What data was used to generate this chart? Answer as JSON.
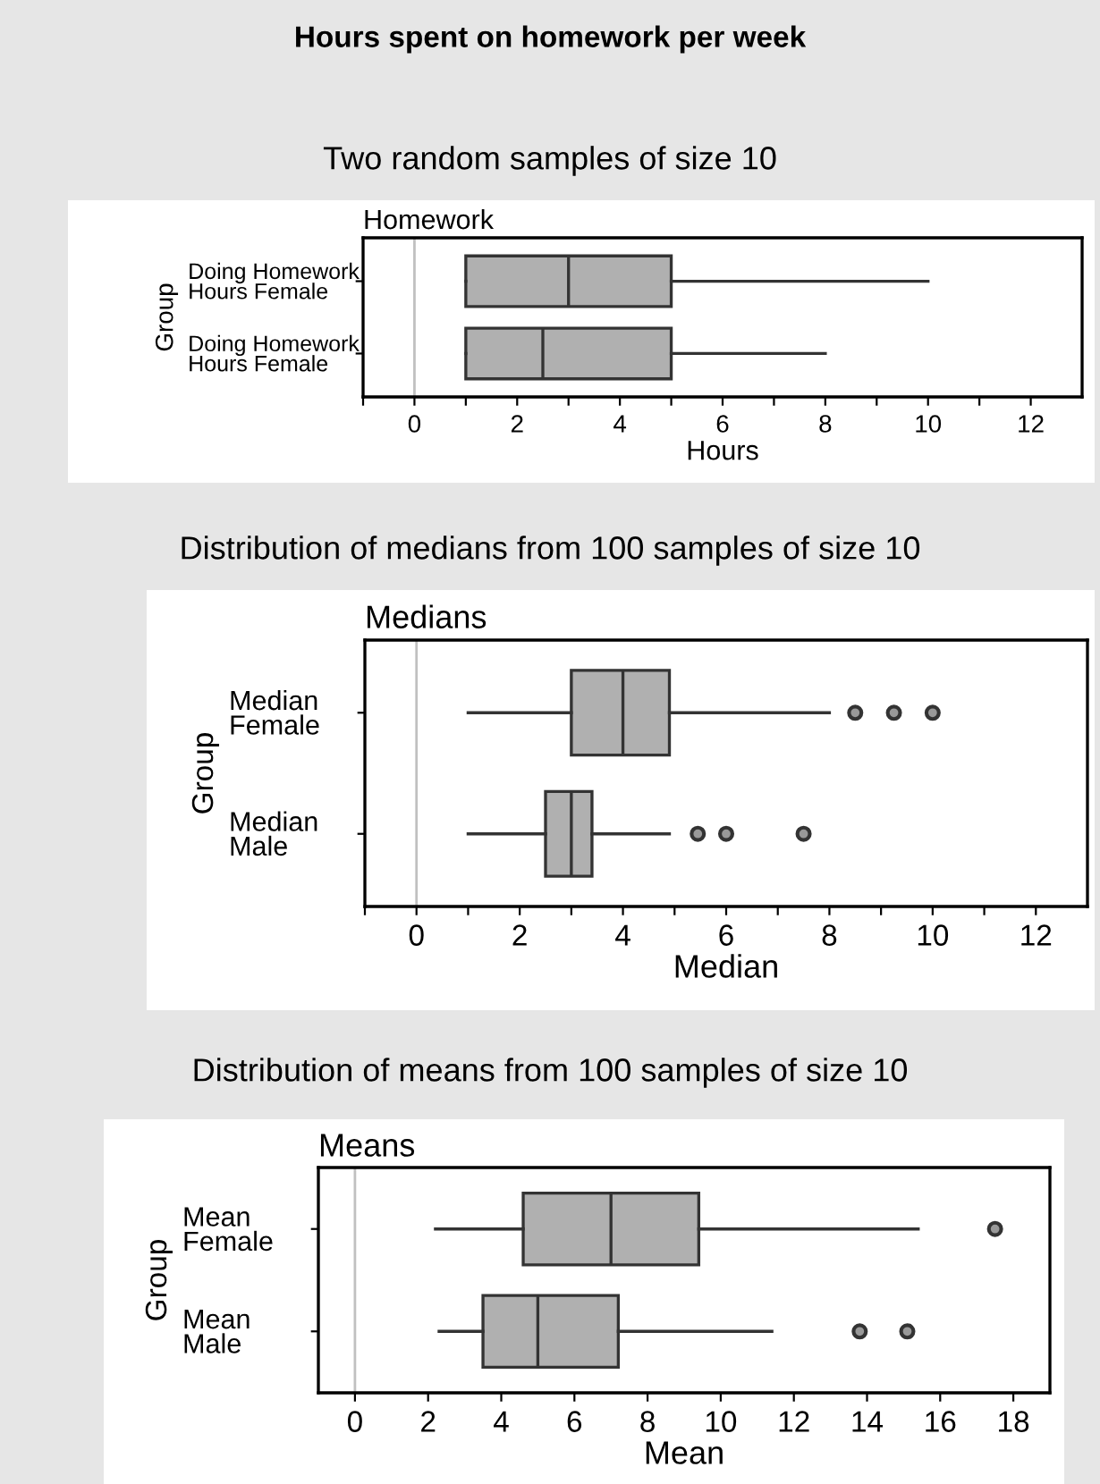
{
  "chart_data": [
    {
      "type": "box",
      "title": "Two random samples of size 10",
      "subtitle": "Homework",
      "annotations": [
        "Hours spent on homework per week"
      ],
      "orientation": "horizontal",
      "xlabel": "Hours",
      "ylabel": "Group",
      "categories": [
        "Doing Homework\nHours Female",
        "Doing Homework\nHours Female"
      ],
      "series": [
        {
          "color": "#b0b0b0",
          "boxes": [
            {
              "low": 1,
              "q1": 1,
              "median": 3,
              "q3": 5,
              "high": 10
            },
            {
              "low": 1,
              "q1": 1,
              "median": 2.5,
              "q3": 5,
              "high": 8
            }
          ]
        }
      ],
      "xlim": [
        -1,
        13
      ],
      "xticks": [
        {
          "value": -1,
          "label": null
        },
        0,
        {
          "value": 1,
          "label": null
        },
        2,
        {
          "value": 3,
          "label": null
        },
        4,
        {
          "value": 5,
          "label": null
        },
        6,
        {
          "value": 7,
          "label": null
        },
        8,
        {
          "value": 9,
          "label": null
        },
        10,
        {
          "value": 11,
          "label": null
        },
        12
      ],
      "ref_lines": [
        {
          "axis": "x",
          "value": 0,
          "label": null,
          "color": "#c0c0c0"
        }
      ],
      "grid": false,
      "legend": false
    },
    {
      "type": "box",
      "title": "Distribution of medians from 100 samples of size 10",
      "subtitle": "Medians",
      "orientation": "horizontal",
      "xlabel": "Median",
      "ylabel": "Group",
      "categories": [
        "Median\nFemale",
        "Median\nMale"
      ],
      "series": [
        {
          "color": "#b0b0b0",
          "boxes": [
            {
              "low": 1,
              "q1": 3,
              "median": 4,
              "q3": 4.9,
              "high": 8,
              "outliers": [
                8.5,
                9.25,
                10
              ]
            },
            {
              "low": 1,
              "q1": 2.5,
              "median": 3,
              "q3": 3.4,
              "high": 4.9,
              "outliers": [
                5.45,
                6,
                7.5
              ]
            }
          ]
        }
      ],
      "xlim": [
        -1,
        13
      ],
      "xticks": [
        {
          "value": -1,
          "label": null
        },
        0,
        {
          "value": 1,
          "label": null
        },
        2,
        {
          "value": 3,
          "label": null
        },
        4,
        {
          "value": 5,
          "label": null
        },
        6,
        {
          "value": 7,
          "label": null
        },
        8,
        {
          "value": 9,
          "label": null
        },
        10,
        {
          "value": 11,
          "label": null
        },
        12
      ],
      "ref_lines": [
        {
          "axis": "x",
          "value": 0,
          "label": null,
          "color": "#c0c0c0"
        }
      ],
      "grid": false,
      "legend": false
    },
    {
      "type": "box",
      "title": "Distribution of means from 100 samples of size 10",
      "subtitle": "Means",
      "orientation": "horizontal",
      "xlabel": "Mean",
      "ylabel": "Group",
      "categories": [
        "Mean\nFemale",
        "Mean\nMale"
      ],
      "series": [
        {
          "color": "#b0b0b0",
          "boxes": [
            {
              "low": 2.2,
              "q1": 4.6,
              "median": 7,
              "q3": 9.4,
              "high": 15.4,
              "outliers": [
                17.5
              ]
            },
            {
              "low": 2.3,
              "q1": 3.5,
              "median": 5,
              "q3": 7.2,
              "high": 11.4,
              "outliers": [
                13.8,
                15.1
              ]
            }
          ]
        }
      ],
      "xlim": [
        -1,
        19
      ],
      "xticks": [
        0,
        2,
        4,
        6,
        8,
        10,
        12,
        14,
        16,
        18
      ],
      "ref_lines": [
        {
          "axis": "x",
          "value": 0,
          "label": null,
          "color": "#c0c0c0"
        }
      ],
      "grid": false,
      "legend": false
    }
  ]
}
